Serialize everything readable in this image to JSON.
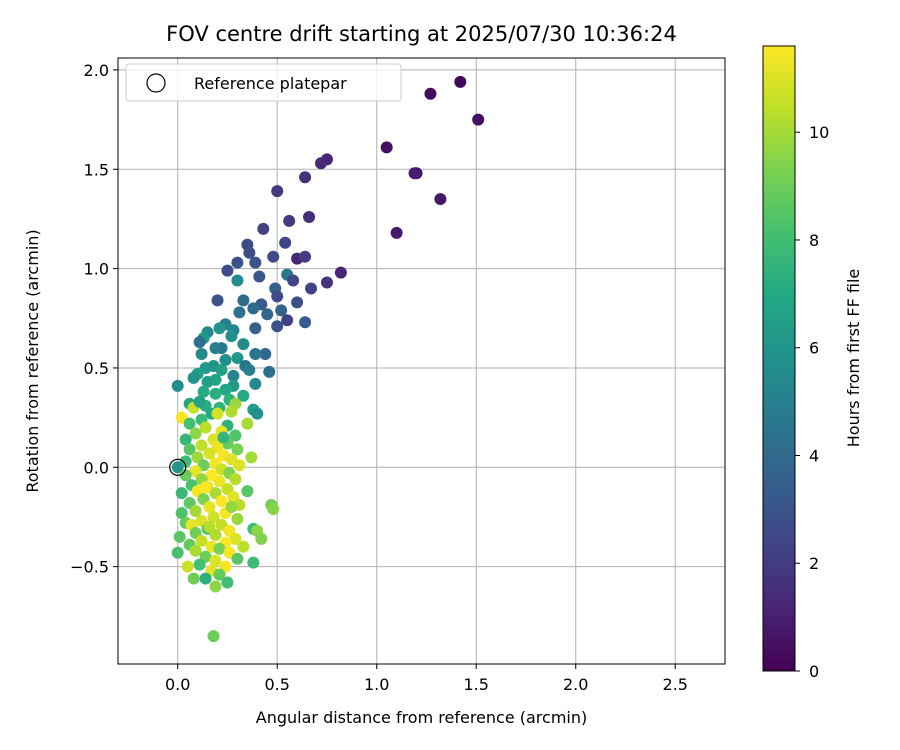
{
  "chart_data": {
    "type": "scatter",
    "title": "FOV centre drift starting at 2025/07/30 10:36:24",
    "xlabel": "Angular distance from reference (arcmin)",
    "ylabel": "Rotation from reference (arcmin)",
    "xlim": [
      -0.3,
      2.75
    ],
    "ylim": [
      -0.99,
      2.06
    ],
    "xticks": [
      0.0,
      0.5,
      1.0,
      1.5,
      2.0,
      2.5
    ],
    "xtick_labels": [
      "0.0",
      "0.5",
      "1.0",
      "1.5",
      "2.0",
      "2.5"
    ],
    "yticks": [
      -0.5,
      0.0,
      0.5,
      1.0,
      1.5,
      2.0
    ],
    "ytick_labels": [
      "−0.5",
      "0.0",
      "0.5",
      "1.0",
      "1.5",
      "2.0"
    ],
    "grid": true,
    "legend": {
      "position": "top-left",
      "entries": [
        "Reference platepar"
      ]
    },
    "reference_point": {
      "x": 0.0,
      "y": 0.0,
      "style": "hollow circle"
    },
    "colorbar": {
      "label": "Hours from first FF file",
      "colormap": "viridis",
      "range": [
        0,
        11.6
      ],
      "ticks": [
        0,
        2,
        4,
        6,
        8,
        10
      ],
      "tick_labels": [
        "0",
        "2",
        "4",
        "6",
        "8",
        "10"
      ]
    },
    "points": [
      [
        1.42,
        1.94,
        0.2
      ],
      [
        1.27,
        1.88,
        0.3
      ],
      [
        1.51,
        1.75,
        0.4
      ],
      [
        1.05,
        1.61,
        0.5
      ],
      [
        1.2,
        1.48,
        0.6
      ],
      [
        1.32,
        1.35,
        0.7
      ],
      [
        1.1,
        1.18,
        0.8
      ],
      [
        1.19,
        1.48,
        0.9
      ],
      [
        0.75,
        1.55,
        1.2
      ],
      [
        0.72,
        1.53,
        1.4
      ],
      [
        0.64,
        1.46,
        1.6
      ],
      [
        0.5,
        1.39,
        1.8
      ],
      [
        0.66,
        1.26,
        1.5
      ],
      [
        0.56,
        1.24,
        2.0
      ],
      [
        0.43,
        1.2,
        2.2
      ],
      [
        0.35,
        1.12,
        2.5
      ],
      [
        0.54,
        1.13,
        2.4
      ],
      [
        0.36,
        1.08,
        2.8
      ],
      [
        0.6,
        1.05,
        1.3
      ],
      [
        0.64,
        1.06,
        2.1
      ],
      [
        0.82,
        0.98,
        1.2
      ],
      [
        0.75,
        0.93,
        1.7
      ],
      [
        0.67,
        0.9,
        2.3
      ],
      [
        0.48,
        1.06,
        2.6
      ],
      [
        0.39,
        1.03,
        2.9
      ],
      [
        0.3,
        1.03,
        3.0
      ],
      [
        0.25,
        0.99,
        2.7
      ],
      [
        0.41,
        0.96,
        3.2
      ],
      [
        0.55,
        0.97,
        4.6
      ],
      [
        0.58,
        0.94,
        2.4
      ],
      [
        0.49,
        0.9,
        3.5
      ],
      [
        0.5,
        0.86,
        2.7
      ],
      [
        0.2,
        0.84,
        3.0
      ],
      [
        0.33,
        0.84,
        4.0
      ],
      [
        0.42,
        0.82,
        3.3
      ],
      [
        0.6,
        0.83,
        2.8
      ],
      [
        0.52,
        0.79,
        3.6
      ],
      [
        0.45,
        0.77,
        3.8
      ],
      [
        0.38,
        0.8,
        4.1
      ],
      [
        0.31,
        0.78,
        4.3
      ],
      [
        0.55,
        0.74,
        2.2
      ],
      [
        0.64,
        0.73,
        3.4
      ],
      [
        0.5,
        0.71,
        2.9
      ],
      [
        0.39,
        0.7,
        3.6
      ],
      [
        0.24,
        0.72,
        5.0
      ],
      [
        0.3,
        0.94,
        5.5
      ],
      [
        0.28,
        0.69,
        5.2
      ],
      [
        0.21,
        0.7,
        6.0
      ],
      [
        0.15,
        0.68,
        5.4
      ],
      [
        0.13,
        0.65,
        6.2
      ],
      [
        0.27,
        0.66,
        5.8
      ],
      [
        0.33,
        0.62,
        5.6
      ],
      [
        0.22,
        0.6,
        4.7
      ],
      [
        0.19,
        0.6,
        5.0
      ],
      [
        0.11,
        0.63,
        4.2
      ],
      [
        0.44,
        0.57,
        3.8
      ],
      [
        0.39,
        0.57,
        4.5
      ],
      [
        0.12,
        0.57,
        5.4
      ],
      [
        0.3,
        0.55,
        6.1
      ],
      [
        0.24,
        0.54,
        5.7
      ],
      [
        0.34,
        0.51,
        4.4
      ],
      [
        0.18,
        0.51,
        5.9
      ],
      [
        0.14,
        0.5,
        6.3
      ],
      [
        0.1,
        0.47,
        6.5
      ],
      [
        0.22,
        0.49,
        6.6
      ],
      [
        0.28,
        0.46,
        5.2
      ],
      [
        0.36,
        0.49,
        5.0
      ],
      [
        0.46,
        0.48,
        4.2
      ],
      [
        0.19,
        0.44,
        6.8
      ],
      [
        0.08,
        0.45,
        6.0
      ],
      [
        0.15,
        0.43,
        6.4
      ],
      [
        0.28,
        0.41,
        6.2
      ],
      [
        0.39,
        0.42,
        5.5
      ],
      [
        0.24,
        0.39,
        6.9
      ],
      [
        0.13,
        0.38,
        7.1
      ],
      [
        0.0,
        0.41,
        5.6
      ],
      [
        0.19,
        0.37,
        7.3
      ],
      [
        0.33,
        0.36,
        7.0
      ],
      [
        0.26,
        0.34,
        7.4
      ],
      [
        0.06,
        0.32,
        6.8
      ],
      [
        0.14,
        0.31,
        7.2
      ],
      [
        0.21,
        0.3,
        7.5
      ],
      [
        0.29,
        0.32,
        9.8
      ],
      [
        0.08,
        0.3,
        10.6
      ],
      [
        0.38,
        0.29,
        6.3
      ],
      [
        0.4,
        0.27,
        5.8
      ],
      [
        0.17,
        0.27,
        7.0
      ],
      [
        0.02,
        0.25,
        11.5
      ],
      [
        0.27,
        0.28,
        10.2
      ],
      [
        0.2,
        0.27,
        10.8
      ],
      [
        0.12,
        0.24,
        7.8
      ],
      [
        0.06,
        0.22,
        8.1
      ],
      [
        0.25,
        0.21,
        7.4
      ],
      [
        0.35,
        0.22,
        10.1
      ],
      [
        0.14,
        0.2,
        10.4
      ],
      [
        0.22,
        0.18,
        11.2
      ],
      [
        0.09,
        0.17,
        9.6
      ],
      [
        0.29,
        0.16,
        8.4
      ],
      [
        0.04,
        0.14,
        7.6
      ],
      [
        0.18,
        0.14,
        11.0
      ],
      [
        0.25,
        0.12,
        8.8
      ],
      [
        0.12,
        0.11,
        10.5
      ],
      [
        0.2,
        0.1,
        11.3
      ],
      [
        0.06,
        0.09,
        8.6
      ],
      [
        0.3,
        0.09,
        9.2
      ],
      [
        0.16,
        0.07,
        10.9
      ],
      [
        0.23,
        0.06,
        11.4
      ],
      [
        0.37,
        0.05,
        10.0
      ],
      [
        0.1,
        0.05,
        9.9
      ],
      [
        0.27,
        0.04,
        11.1
      ],
      [
        0.04,
        0.03,
        7.9
      ],
      [
        0.19,
        0.02,
        11.5
      ],
      [
        0.13,
        0.01,
        9.0
      ],
      [
        0.31,
        0.01,
        11.0
      ],
      [
        0.0,
        0.0,
        6.1
      ],
      [
        0.22,
        -0.01,
        10.7
      ],
      [
        0.09,
        -0.02,
        11.2
      ],
      [
        0.26,
        -0.03,
        9.4
      ],
      [
        0.17,
        -0.04,
        11.6
      ],
      [
        0.04,
        -0.04,
        8.9
      ],
      [
        0.12,
        -0.06,
        9.7
      ],
      [
        0.29,
        -0.06,
        10.3
      ],
      [
        0.21,
        -0.07,
        11.3
      ],
      [
        0.07,
        -0.09,
        8.2
      ],
      [
        0.15,
        -0.1,
        11.0
      ],
      [
        0.25,
        -0.11,
        10.6
      ],
      [
        0.35,
        -0.12,
        8.5
      ],
      [
        0.1,
        -0.12,
        11.4
      ],
      [
        0.19,
        -0.13,
        10.1
      ],
      [
        0.02,
        -0.13,
        7.7
      ],
      [
        0.28,
        -0.15,
        11.1
      ],
      [
        0.13,
        -0.16,
        9.3
      ],
      [
        0.22,
        -0.17,
        11.6
      ],
      [
        0.06,
        -0.18,
        8.7
      ],
      [
        0.31,
        -0.19,
        10.4
      ],
      [
        0.16,
        -0.2,
        11.2
      ],
      [
        0.47,
        -0.19,
        9.1
      ],
      [
        0.48,
        -0.21,
        9.5
      ],
      [
        0.09,
        -0.22,
        10.0
      ],
      [
        0.24,
        -0.23,
        11.5
      ],
      [
        0.02,
        -0.23,
        8.3
      ],
      [
        0.18,
        -0.25,
        10.8
      ],
      [
        0.3,
        -0.26,
        9.8
      ],
      [
        0.12,
        -0.27,
        11.0
      ],
      [
        0.04,
        -0.28,
        8.9
      ],
      [
        0.22,
        -0.29,
        10.5
      ],
      [
        0.07,
        -0.29,
        11.2
      ],
      [
        0.38,
        -0.31,
        8.0
      ],
      [
        0.15,
        -0.31,
        8.4
      ],
      [
        0.26,
        -0.32,
        11.4
      ],
      [
        0.4,
        -0.32,
        9.6
      ],
      [
        0.09,
        -0.33,
        9.1
      ],
      [
        0.19,
        -0.34,
        10.2
      ],
      [
        0.01,
        -0.35,
        8.6
      ],
      [
        0.29,
        -0.36,
        11.0
      ],
      [
        0.12,
        -0.37,
        10.6
      ],
      [
        0.42,
        -0.36,
        9.4
      ],
      [
        0.24,
        -0.38,
        11.6
      ],
      [
        0.06,
        -0.39,
        8.8
      ],
      [
        0.17,
        -0.4,
        11.3
      ],
      [
        0.33,
        -0.4,
        10.4
      ],
      [
        0.21,
        -0.41,
        9.2
      ],
      [
        0.09,
        -0.42,
        10.1
      ],
      [
        0.0,
        -0.43,
        8.2
      ],
      [
        0.26,
        -0.43,
        11.5
      ],
      [
        0.14,
        -0.45,
        9.0
      ],
      [
        0.3,
        -0.46,
        8.6
      ],
      [
        0.19,
        -0.47,
        11.0
      ],
      [
        0.38,
        -0.48,
        7.9
      ],
      [
        0.11,
        -0.49,
        8.1
      ],
      [
        0.24,
        -0.5,
        11.5
      ],
      [
        0.05,
        -0.5,
        10.7
      ],
      [
        0.17,
        -0.52,
        11.1
      ],
      [
        0.21,
        -0.54,
        8.8
      ],
      [
        0.14,
        -0.56,
        7.3
      ],
      [
        0.08,
        -0.56,
        9.0
      ],
      [
        0.25,
        -0.58,
        8.0
      ],
      [
        0.19,
        -0.6,
        9.6
      ],
      [
        0.18,
        -0.85,
        9.0
      ],
      [
        0.14,
        -0.1,
        11.6
      ],
      [
        0.16,
        -0.3,
        10.3
      ],
      [
        0.27,
        -0.2,
        9.7
      ],
      [
        0.23,
        0.15,
        7.6
      ],
      [
        0.11,
        0.33,
        6.7
      ]
    ]
  }
}
